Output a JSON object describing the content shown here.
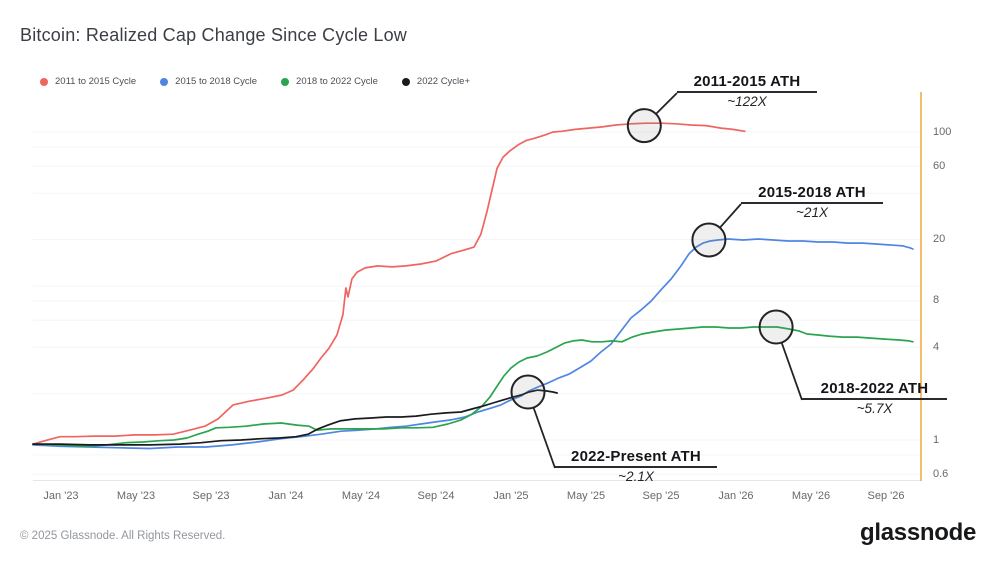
{
  "page": {
    "title": "Bitcoin: Realized Cap Change Since Cycle Low"
  },
  "footer": {
    "copyright": "© 2025 Glassnode. All Rights Reserved.",
    "brand": "glassnode"
  },
  "chart_data": {
    "type": "line",
    "title": "Bitcoin: Realized Cap Change Since Cycle Low",
    "x_unit": "months since cycle low (calendar-aligned axis)",
    "x_axis": {
      "ticks": [
        {
          "label": "Jan '23",
          "m": 1.5
        },
        {
          "label": "May '23",
          "m": 5.5
        },
        {
          "label": "Sep '23",
          "m": 9.5
        },
        {
          "label": "Jan '24",
          "m": 13.5
        },
        {
          "label": "May '24",
          "m": 17.5
        },
        {
          "label": "Sep '24",
          "m": 21.5
        },
        {
          "label": "Jan '25",
          "m": 25.5
        },
        {
          "label": "May '25",
          "m": 29.5
        },
        {
          "label": "Sep '25",
          "m": 33.5
        },
        {
          "label": "Jan '26",
          "m": 37.5
        },
        {
          "label": "May '26",
          "m": 41.5
        },
        {
          "label": "Sep '26",
          "m": 45.5
        }
      ]
    },
    "y_axis": {
      "scale": "log",
      "side": "right",
      "ticks": [
        {
          "label": "100",
          "v": 100
        },
        {
          "label": "60",
          "v": 60
        },
        {
          "label": "20",
          "v": 20
        },
        {
          "label": "8",
          "v": 8
        },
        {
          "label": "4",
          "v": 4
        },
        {
          "label": "1",
          "v": 1
        },
        {
          "label": "0.6",
          "v": 0.6
        }
      ],
      "gridline_values": [
        100,
        80,
        60,
        40,
        20,
        10,
        8,
        6,
        4,
        2,
        1,
        0.8,
        0.6
      ],
      "range": [
        0.55,
        130
      ],
      "axis_line_color": "#f6a33d"
    },
    "series": [
      {
        "name": "2011 to 2015 Cycle",
        "color": "#ef655f",
        "points": [
          [
            0,
            0.94
          ],
          [
            0.64,
            0.99
          ],
          [
            1.44,
            1.05
          ],
          [
            2.24,
            1.05
          ],
          [
            3.31,
            1.06
          ],
          [
            4.37,
            1.06
          ],
          [
            5.44,
            1.08
          ],
          [
            6.51,
            1.08
          ],
          [
            7.47,
            1.09
          ],
          [
            8.37,
            1.16
          ],
          [
            9.17,
            1.23
          ],
          [
            9.87,
            1.37
          ],
          [
            10.67,
            1.69
          ],
          [
            11.57,
            1.79
          ],
          [
            12.48,
            1.87
          ],
          [
            13.28,
            1.96
          ],
          [
            13.87,
            2.11
          ],
          [
            14.4,
            2.45
          ],
          [
            14.93,
            2.89
          ],
          [
            15.36,
            3.41
          ],
          [
            15.79,
            3.95
          ],
          [
            16.21,
            4.8
          ],
          [
            16.53,
            6.5
          ],
          [
            16.69,
            9.7
          ],
          [
            16.8,
            8.5
          ],
          [
            17.01,
            11.1
          ],
          [
            17.28,
            12.3
          ],
          [
            17.71,
            13.1
          ],
          [
            18.4,
            13.5
          ],
          [
            19.15,
            13.3
          ],
          [
            19.89,
            13.5
          ],
          [
            20.69,
            13.9
          ],
          [
            21.49,
            14.5
          ],
          [
            22.29,
            16.2
          ],
          [
            22.99,
            17.1
          ],
          [
            23.52,
            17.9
          ],
          [
            23.89,
            21.7
          ],
          [
            24.21,
            30.3
          ],
          [
            24.48,
            42
          ],
          [
            24.75,
            58.2
          ],
          [
            25.07,
            68.7
          ],
          [
            25.44,
            75.5
          ],
          [
            25.87,
            82.5
          ],
          [
            26.29,
            87.9
          ],
          [
            26.77,
            91.2
          ],
          [
            27.31,
            95.7
          ],
          [
            27.73,
            100
          ],
          [
            28.21,
            101
          ],
          [
            28.91,
            104
          ],
          [
            29.65,
            106
          ],
          [
            30.35,
            108
          ],
          [
            31.09,
            111
          ],
          [
            31.89,
            113
          ],
          [
            32.69,
            114
          ],
          [
            33.49,
            114
          ],
          [
            34.29,
            113
          ],
          [
            35.09,
            111
          ],
          [
            35.89,
            110
          ],
          [
            36.69,
            106
          ],
          [
            37.33,
            104
          ],
          [
            37.97,
            101
          ]
        ]
      },
      {
        "name": "2015 to 2018 Cycle",
        "color": "#4f86e3",
        "points": [
          [
            0,
            0.93
          ],
          [
            1.44,
            0.91
          ],
          [
            3.04,
            0.9
          ],
          [
            4.64,
            0.89
          ],
          [
            6.24,
            0.88
          ],
          [
            7.73,
            0.9
          ],
          [
            9.23,
            0.9
          ],
          [
            10.61,
            0.93
          ],
          [
            11.95,
            0.97
          ],
          [
            13.23,
            1.02
          ],
          [
            14.29,
            1.05
          ],
          [
            15.36,
            1.09
          ],
          [
            16.43,
            1.14
          ],
          [
            17.39,
            1.16
          ],
          [
            18.29,
            1.18
          ],
          [
            19.09,
            1.21
          ],
          [
            19.89,
            1.23
          ],
          [
            20.69,
            1.27
          ],
          [
            21.49,
            1.31
          ],
          [
            22.29,
            1.35
          ],
          [
            23.04,
            1.41
          ],
          [
            23.73,
            1.52
          ],
          [
            24.43,
            1.61
          ],
          [
            24.96,
            1.69
          ],
          [
            25.49,
            1.82
          ],
          [
            26.03,
            1.93
          ],
          [
            26.45,
            2.08
          ],
          [
            26.93,
            2.21
          ],
          [
            27.47,
            2.35
          ],
          [
            28.05,
            2.53
          ],
          [
            28.59,
            2.68
          ],
          [
            29.23,
            2.98
          ],
          [
            29.76,
            3.26
          ],
          [
            30.29,
            3.73
          ],
          [
            30.83,
            4.2
          ],
          [
            31.36,
            5.1
          ],
          [
            31.89,
            6.2
          ],
          [
            32.43,
            7.0
          ],
          [
            32.96,
            7.97
          ],
          [
            33.49,
            9.43
          ],
          [
            34.03,
            11.1
          ],
          [
            34.56,
            13.5
          ],
          [
            34.99,
            16.2
          ],
          [
            35.36,
            17.9
          ],
          [
            35.73,
            19.0
          ],
          [
            36.11,
            19.6
          ],
          [
            36.53,
            19.9
          ],
          [
            37.07,
            20.2
          ],
          [
            37.87,
            19.9
          ],
          [
            38.67,
            20.2
          ],
          [
            39.47,
            19.9
          ],
          [
            40.27,
            19.6
          ],
          [
            41.07,
            19.6
          ],
          [
            41.87,
            19.3
          ],
          [
            42.67,
            19.3
          ],
          [
            43.47,
            19.0
          ],
          [
            44.27,
            19.0
          ],
          [
            45.07,
            18.7
          ],
          [
            45.87,
            18.4
          ],
          [
            46.4,
            18.2
          ],
          [
            46.77,
            17.7
          ],
          [
            46.93,
            17.4
          ]
        ]
      },
      {
        "name": "2018 to 2022 Cycle",
        "color": "#2aa44f",
        "points": [
          [
            0,
            0.94
          ],
          [
            1.44,
            0.93
          ],
          [
            2.77,
            0.91
          ],
          [
            3.95,
            0.93
          ],
          [
            4.96,
            0.96
          ],
          [
            5.87,
            0.97
          ],
          [
            6.77,
            0.99
          ],
          [
            7.52,
            1.0
          ],
          [
            8.21,
            1.03
          ],
          [
            8.8,
            1.09
          ],
          [
            9.33,
            1.14
          ],
          [
            9.76,
            1.2
          ],
          [
            10.45,
            1.21
          ],
          [
            11.36,
            1.23
          ],
          [
            12.27,
            1.27
          ],
          [
            13.23,
            1.29
          ],
          [
            14.08,
            1.25
          ],
          [
            14.72,
            1.23
          ],
          [
            15.15,
            1.16
          ],
          [
            15.89,
            1.18
          ],
          [
            16.8,
            1.18
          ],
          [
            17.76,
            1.18
          ],
          [
            18.72,
            1.18
          ],
          [
            19.63,
            1.2
          ],
          [
            20.48,
            1.2
          ],
          [
            21.33,
            1.21
          ],
          [
            22.13,
            1.27
          ],
          [
            22.83,
            1.35
          ],
          [
            23.41,
            1.47
          ],
          [
            23.95,
            1.66
          ],
          [
            24.37,
            1.9
          ],
          [
            24.75,
            2.24
          ],
          [
            25.12,
            2.61
          ],
          [
            25.49,
            2.93
          ],
          [
            25.92,
            3.21
          ],
          [
            26.35,
            3.41
          ],
          [
            26.88,
            3.51
          ],
          [
            27.41,
            3.73
          ],
          [
            27.95,
            4.02
          ],
          [
            28.37,
            4.27
          ],
          [
            28.8,
            4.4
          ],
          [
            29.28,
            4.46
          ],
          [
            29.81,
            4.34
          ],
          [
            30.35,
            4.34
          ],
          [
            30.88,
            4.4
          ],
          [
            31.41,
            4.34
          ],
          [
            31.95,
            4.66
          ],
          [
            32.48,
            4.88
          ],
          [
            33.07,
            5.03
          ],
          [
            33.76,
            5.18
          ],
          [
            34.45,
            5.26
          ],
          [
            35.09,
            5.34
          ],
          [
            35.73,
            5.42
          ],
          [
            36.43,
            5.42
          ],
          [
            37.12,
            5.34
          ],
          [
            37.76,
            5.34
          ],
          [
            38.4,
            5.42
          ],
          [
            39.04,
            5.42
          ],
          [
            39.68,
            5.42
          ],
          [
            40.32,
            5.26
          ],
          [
            40.85,
            5.11
          ],
          [
            41.28,
            4.88
          ],
          [
            41.81,
            4.81
          ],
          [
            42.45,
            4.73
          ],
          [
            43.2,
            4.66
          ],
          [
            43.95,
            4.66
          ],
          [
            44.69,
            4.59
          ],
          [
            45.44,
            4.52
          ],
          [
            46.19,
            4.46
          ],
          [
            46.72,
            4.4
          ],
          [
            46.93,
            4.34
          ]
        ]
      },
      {
        "name": "2022 Cycle+",
        "color": "#1a1b1e",
        "points": [
          [
            0,
            0.94
          ],
          [
            1.44,
            0.94
          ],
          [
            3.04,
            0.93
          ],
          [
            4.64,
            0.93
          ],
          [
            6.24,
            0.93
          ],
          [
            7.84,
            0.94
          ],
          [
            8.96,
            0.96
          ],
          [
            10.03,
            0.99
          ],
          [
            11.09,
            1.0
          ],
          [
            12.16,
            1.02
          ],
          [
            13.12,
            1.03
          ],
          [
            14.03,
            1.05
          ],
          [
            14.67,
            1.09
          ],
          [
            15.2,
            1.18
          ],
          [
            15.73,
            1.25
          ],
          [
            16.37,
            1.33
          ],
          [
            17.17,
            1.37
          ],
          [
            18.03,
            1.39
          ],
          [
            18.83,
            1.41
          ],
          [
            19.63,
            1.41
          ],
          [
            20.43,
            1.43
          ],
          [
            21.23,
            1.47
          ],
          [
            22.03,
            1.5
          ],
          [
            22.83,
            1.52
          ],
          [
            23.41,
            1.59
          ],
          [
            24.0,
            1.66
          ],
          [
            24.53,
            1.74
          ],
          [
            25.07,
            1.82
          ],
          [
            25.6,
            1.9
          ],
          [
            26.03,
            1.96
          ],
          [
            26.45,
            2.05
          ],
          [
            26.93,
            2.11
          ],
          [
            27.41,
            2.08
          ],
          [
            27.73,
            2.05
          ],
          [
            27.95,
            2.02
          ]
        ]
      }
    ],
    "annotations": [
      {
        "title": "2011-2015 ATH",
        "value": "~122X",
        "point": {
          "m": 32.6,
          "v": 110
        }
      },
      {
        "title": "2015-2018 ATH",
        "value": "~21X",
        "point": {
          "m": 36.05,
          "v": 19.9
        }
      },
      {
        "title": "2018-2022 ATH",
        "value": "~5.7X",
        "point": {
          "m": 39.63,
          "v": 5.42
        }
      },
      {
        "title": "2022-Present ATH",
        "value": "~2.1X",
        "point": {
          "m": 26.4,
          "v": 2.05
        }
      }
    ]
  }
}
